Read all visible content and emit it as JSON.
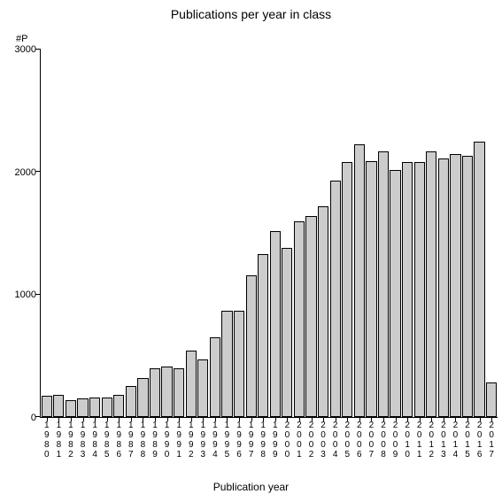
{
  "chart": {
    "type": "bar",
    "title": "Publications per year in class",
    "title_fontsize": 14,
    "ylabel_top": "#P",
    "xlabel": "Publication year",
    "label_fontsize": 12,
    "background_color": "#ffffff",
    "bar_fill": "#cccccc",
    "bar_border": "#000000",
    "axis_color": "#000000",
    "text_color": "#000000",
    "tick_fontsize": 11,
    "xlabel_fontsize": 10,
    "ylim": [
      0,
      3000
    ],
    "ytick_step": 1000,
    "yticks": [
      0,
      1000,
      2000,
      3000
    ],
    "bar_width": 0.9,
    "categories": [
      "1980",
      "1981",
      "1982",
      "1983",
      "1984",
      "1985",
      "1986",
      "1987",
      "1988",
      "1989",
      "1990",
      "1991",
      "1992",
      "1993",
      "1994",
      "1995",
      "1996",
      "1997",
      "1998",
      "1999",
      "2000",
      "2001",
      "2002",
      "2003",
      "2004",
      "2005",
      "2006",
      "2007",
      "2008",
      "2009",
      "2010",
      "2011",
      "2012",
      "2013",
      "2014",
      "2015",
      "2016",
      "2017"
    ],
    "values": [
      170,
      180,
      140,
      150,
      160,
      160,
      180,
      250,
      320,
      400,
      410,
      400,
      540,
      470,
      650,
      870,
      870,
      1160,
      1330,
      1520,
      1380,
      1600,
      1640,
      1720,
      1930,
      2080,
      2230,
      2090,
      2170,
      2020,
      2080,
      2080,
      2170,
      2110,
      2150,
      2130,
      2250,
      280
    ]
  }
}
